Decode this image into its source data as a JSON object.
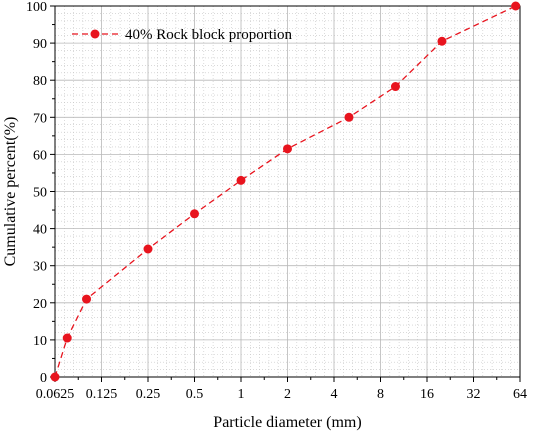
{
  "chart_data": {
    "type": "line",
    "xlabel": "Particle diameter (mm)",
    "ylabel": "Cumulative percent(%)",
    "x_scale": "log2",
    "x_ticks": [
      0.0625,
      0.125,
      0.25,
      0.5,
      1,
      2,
      4,
      8,
      16,
      32,
      64
    ],
    "x_tick_labels": [
      "0.0625",
      "0.125",
      "0.25",
      "0.5",
      "1",
      "2",
      "4",
      "8",
      "16",
      "32",
      "64"
    ],
    "xlim": [
      0.0625,
      64
    ],
    "y_ticks": [
      0,
      10,
      20,
      30,
      40,
      50,
      60,
      70,
      80,
      90,
      100
    ],
    "y_tick_labels": [
      "0",
      "10",
      "20",
      "30",
      "40",
      "50",
      "60",
      "70",
      "80",
      "90",
      "100"
    ],
    "ylim": [
      0,
      100
    ],
    "grid": true,
    "legend_position": "top-left",
    "series": [
      {
        "name": "40% Rock block proportion",
        "color": "#e8141e",
        "line_style": "dashed",
        "marker": "circle",
        "x": [
          0.0625,
          0.075,
          0.1,
          0.25,
          0.5,
          1,
          2,
          5,
          10,
          20,
          60
        ],
        "y": [
          0,
          10.5,
          21,
          34.5,
          44,
          53,
          61.5,
          70,
          78.3,
          90.5,
          100
        ]
      }
    ]
  }
}
